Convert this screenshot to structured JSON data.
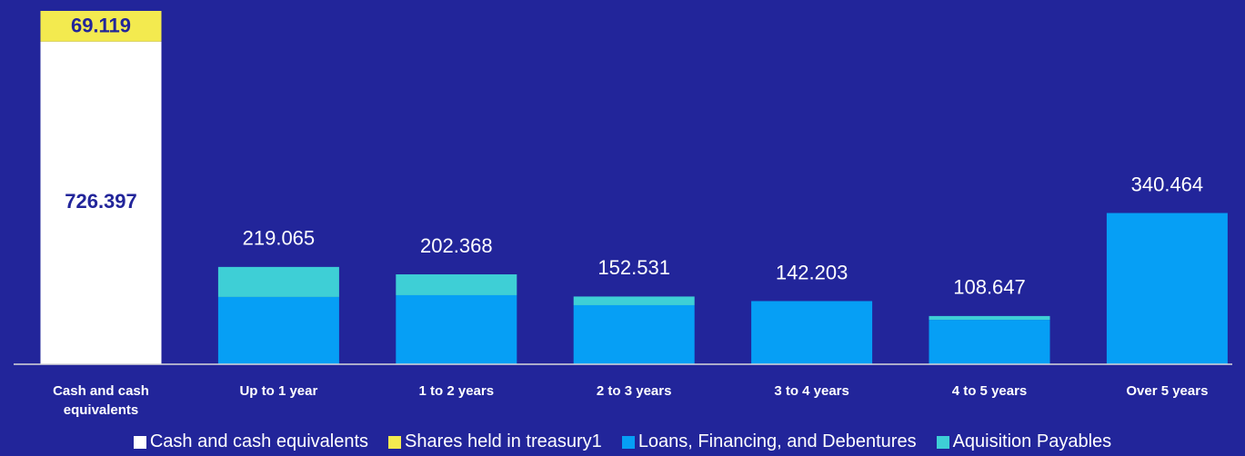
{
  "chart_data": {
    "type": "stacked_bar",
    "categories": [
      "Cash and cash equivalents",
      "Up to 1 year",
      "1 to 2 years",
      "2 to 3 years",
      "3 to 4 years",
      "4 to 5 years",
      "Over 5 years"
    ],
    "series": [
      {
        "name": "Cash and cash equivalents",
        "color": "#ffffff",
        "values": [
          726.397,
          null,
          null,
          null,
          null,
          null,
          null
        ]
      },
      {
        "name": "Shares held in treasury1",
        "color": "#f3ea4f",
        "values": [
          69.119,
          null,
          null,
          null,
          null,
          null,
          null
        ]
      },
      {
        "name": "Loans, Financing, and Debentures",
        "color": "#069ff5",
        "values": [
          null,
          151.5,
          155.5,
          133,
          142.2,
          100,
          340.464
        ]
      },
      {
        "name": "Aquisition Payables",
        "color": "#3ecfd6",
        "values": [
          null,
          67.6,
          46.9,
          19.5,
          0,
          8.6,
          0
        ]
      }
    ],
    "totals": [
      null,
      219.065,
      202.368,
      152.531,
      142.203,
      108.647,
      340.464
    ],
    "legend": "bottom"
  }
}
